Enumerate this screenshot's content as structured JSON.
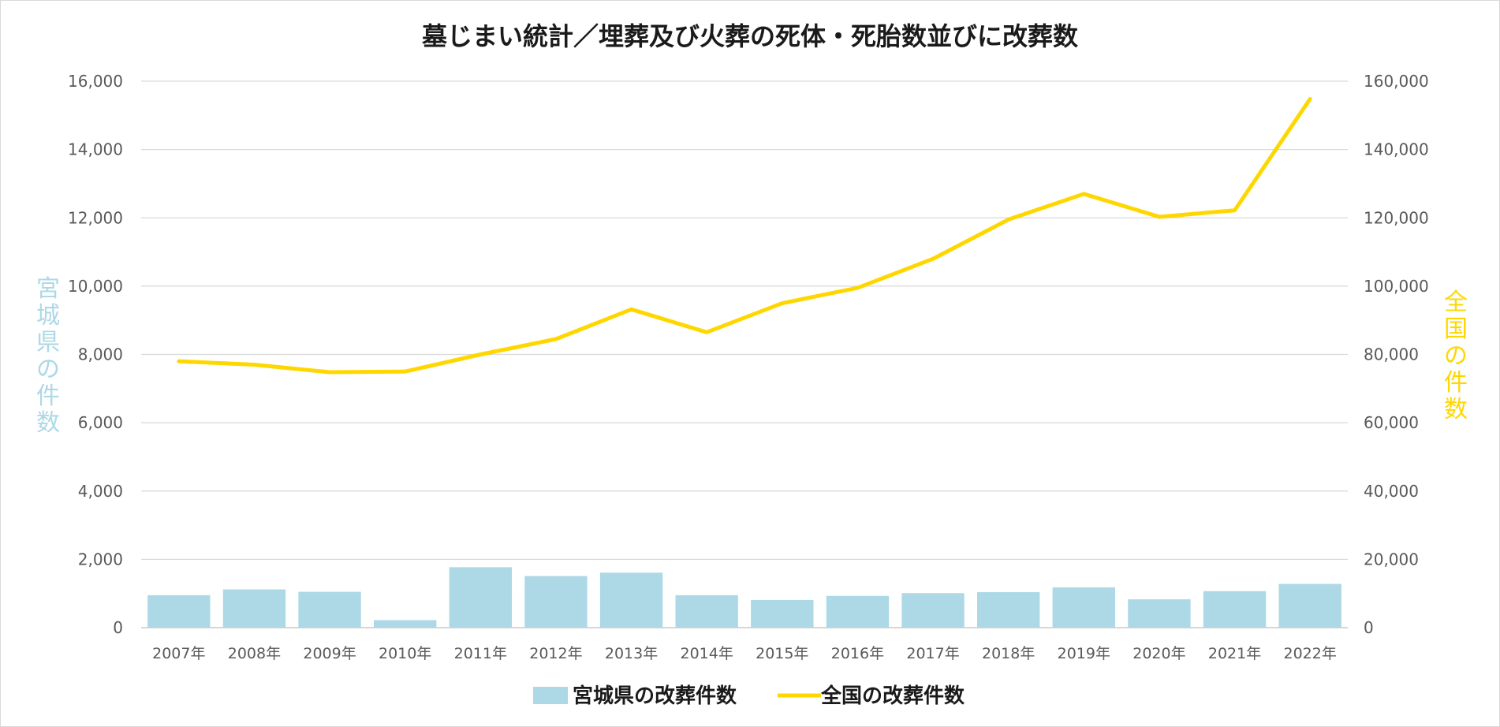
{
  "chart_data": {
    "type": "bar",
    "title": "墓じまい統計／埋葬及び火葬の死体・死胎数並びに改葬数",
    "categories": [
      "2007年",
      "2008年",
      "2009年",
      "2010年",
      "2011年",
      "2012年",
      "2013年",
      "2014年",
      "2015年",
      "2016年",
      "2017年",
      "2018年",
      "2019年",
      "2020年",
      "2021年",
      "2022年"
    ],
    "y_left": {
      "label": "宮城県の件数",
      "ylim": [
        0,
        16000
      ],
      "ticks": [
        "0",
        "2,000",
        "4,000",
        "6,000",
        "8,000",
        "10,000",
        "12,000",
        "14,000",
        "16,000"
      ],
      "tick_values": [
        0,
        2000,
        4000,
        6000,
        8000,
        10000,
        12000,
        14000,
        16000
      ]
    },
    "y_right": {
      "label": "全国の件数",
      "ylim": [
        0,
        160000
      ],
      "ticks": [
        "0",
        "20,000",
        "40,000",
        "60,000",
        "80,000",
        "100,000",
        "120,000",
        "140,000",
        "160,000"
      ],
      "tick_values": [
        0,
        20000,
        40000,
        60000,
        80000,
        100000,
        120000,
        140000,
        160000
      ]
    },
    "series": [
      {
        "name": "宮城県の改葬件数",
        "type": "bar",
        "axis": "left",
        "color": "#add8e6",
        "values": [
          950,
          1120,
          1050,
          220,
          1770,
          1510,
          1610,
          950,
          810,
          930,
          1010,
          1040,
          1180,
          830,
          1070,
          1280
        ]
      },
      {
        "name": "全国の改葬件数",
        "type": "line",
        "axis": "right",
        "color": "#ffd700",
        "values": [
          78000,
          77000,
          74800,
          75000,
          80000,
          84500,
          93200,
          86500,
          95000,
          99500,
          108000,
          119500,
          127000,
          120300,
          122200,
          154800
        ]
      }
    ],
    "grid": true,
    "legend": "bottom"
  }
}
